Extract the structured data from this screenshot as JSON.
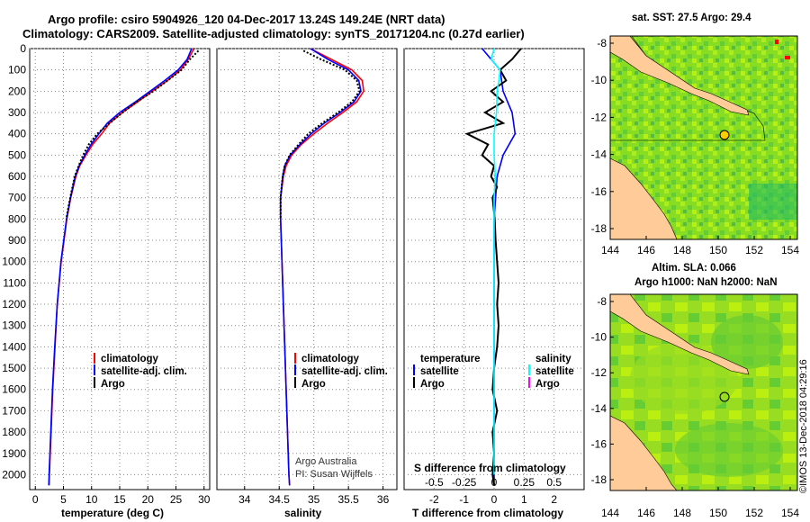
{
  "header": {
    "line1": "Argo profile: csiro 5904926_120 04-Dec-2017 13.24S 149.24E (NRT data)",
    "line2": "Climatology: CARS2009. Satellite-adjusted climatology: synTS_20171204.nc (0.27d earlier)"
  },
  "colors": {
    "climatology": "#ff0000",
    "satellite": "#0000ff",
    "argo": "#000000",
    "salinity_satellite": "#00ffff",
    "salinity_argo": "#ff00ff",
    "land": "#ffcc99",
    "ocean_green": "#66cc33"
  },
  "y_axis": {
    "ticks": [
      0,
      100,
      200,
      300,
      400,
      500,
      600,
      700,
      800,
      900,
      1000,
      1100,
      1200,
      1300,
      1400,
      1500,
      1600,
      1700,
      1800,
      1900,
      2000
    ],
    "min": 0,
    "max": 2070
  },
  "chart_data": [
    {
      "type": "line",
      "id": "temperature",
      "xlabel": "temperature (deg C)",
      "xlim": [
        -1,
        31
      ],
      "xticks": [
        0,
        5,
        10,
        15,
        20,
        25,
        30
      ],
      "legend": [
        "climatology",
        "satellite-adj. clim.",
        "Argo"
      ],
      "series": [
        {
          "name": "climatology",
          "depth": [
            0,
            50,
            100,
            150,
            200,
            250,
            300,
            350,
            400,
            450,
            500,
            550,
            600,
            700,
            800,
            900,
            1000,
            1200,
            1400,
            1600,
            1800,
            2000,
            2050
          ],
          "values": [
            28.2,
            27.2,
            25.8,
            23.5,
            20.8,
            18.2,
            15.5,
            13.2,
            11.8,
            10.2,
            9.0,
            7.9,
            7.2,
            6.3,
            5.6,
            5.1,
            4.6,
            3.9,
            3.5,
            3.1,
            2.8,
            2.5,
            2.45
          ]
        },
        {
          "name": "satellite-adj. clim.",
          "depth": [
            0,
            50,
            100,
            150,
            200,
            250,
            300,
            350,
            400,
            450,
            500,
            550,
            600,
            700,
            800,
            900,
            1000,
            1200,
            1400,
            1600,
            1800,
            2000,
            2050
          ],
          "values": [
            27.8,
            27.0,
            25.4,
            23.0,
            20.4,
            17.8,
            15.0,
            12.8,
            11.3,
            9.9,
            8.8,
            7.8,
            7.1,
            6.25,
            5.55,
            5.05,
            4.55,
            3.9,
            3.45,
            3.05,
            2.75,
            2.45,
            2.4
          ]
        },
        {
          "name": "Argo",
          "depth": [
            10,
            50,
            100,
            150,
            200,
            250,
            300,
            350,
            400,
            450,
            500,
            550,
            600,
            700,
            800
          ],
          "values": [
            29.0,
            27.5,
            26.0,
            23.5,
            21.0,
            18.0,
            15.5,
            13.2,
            11.0,
            9.5,
            8.5,
            7.7,
            7.0,
            6.2,
            5.5
          ]
        }
      ]
    },
    {
      "type": "line",
      "id": "salinity",
      "xlabel": "salinity",
      "xlim": [
        33.6,
        36.2
      ],
      "xticks": [
        34,
        34.5,
        35,
        35.5,
        36
      ],
      "legend": [
        "climatology",
        "satellite-adj. clim.",
        "Argo"
      ],
      "note_lines": [
        "Argo Australia",
        "PI: Susan Wijffels"
      ],
      "series": [
        {
          "name": "climatology",
          "depth": [
            0,
            50,
            100,
            150,
            200,
            250,
            300,
            350,
            400,
            450,
            500,
            550,
            600,
            700,
            800,
            1000,
            1200,
            1400,
            1600,
            1800,
            2000,
            2050
          ],
          "values": [
            34.95,
            35.25,
            35.55,
            35.7,
            35.72,
            35.62,
            35.42,
            35.2,
            35.0,
            34.82,
            34.68,
            34.6,
            34.56,
            34.52,
            34.52,
            34.54,
            34.56,
            34.58,
            34.6,
            34.62,
            34.64,
            34.65
          ]
        },
        {
          "name": "satellite-adj. clim.",
          "depth": [
            0,
            50,
            100,
            150,
            200,
            250,
            300,
            350,
            400,
            450,
            500,
            550,
            600,
            700,
            800,
            1000,
            1200,
            1400,
            1600,
            1800,
            2000,
            2050
          ],
          "values": [
            34.95,
            35.2,
            35.5,
            35.65,
            35.68,
            35.58,
            35.38,
            35.15,
            34.96,
            34.8,
            34.66,
            34.58,
            34.55,
            34.52,
            34.52,
            34.54,
            34.56,
            34.58,
            34.6,
            34.62,
            34.64,
            34.65
          ]
        },
        {
          "name": "Argo",
          "depth": [
            10,
            50,
            100,
            150,
            200,
            250,
            300,
            350,
            400,
            450,
            500,
            550,
            600,
            700,
            800
          ],
          "values": [
            34.85,
            35.1,
            35.45,
            35.62,
            35.66,
            35.55,
            35.35,
            35.12,
            34.92,
            34.78,
            34.65,
            34.58,
            34.55,
            34.52,
            34.52
          ]
        }
      ]
    },
    {
      "type": "line",
      "id": "difference",
      "xlabel": "T difference from climatology",
      "xlim": [
        -3,
        3
      ],
      "xticks": [
        "-2",
        "-1",
        "0",
        "1",
        "2"
      ],
      "secondary_xlabel": "S difference from climatology",
      "secondary_xticks": [
        "-0.5",
        "-0.25",
        "0",
        "0.25",
        "0.5"
      ],
      "legend_left_title": "temperature",
      "legend_right_title": "salinity",
      "legend_left": [
        "satellite",
        "Argo"
      ],
      "legend_right": [
        "satellite",
        "Argo"
      ],
      "series": [
        {
          "name": "temperature satellite",
          "depth": [
            0,
            100,
            200,
            300,
            400,
            500,
            600,
            700,
            800,
            1000,
            1500,
            2000,
            2050
          ],
          "values": [
            -0.4,
            0.2,
            0.3,
            0.6,
            0.7,
            0.3,
            0.1,
            0.05,
            0.0,
            0.0,
            0.0,
            0.0,
            0.0
          ]
        },
        {
          "name": "temperature Argo",
          "depth": [
            0,
            50,
            100,
            150,
            200,
            250,
            300,
            350,
            400,
            450,
            500,
            550,
            600,
            650,
            700,
            800,
            900,
            1000,
            1100,
            1200,
            1300,
            1400,
            1500,
            1600,
            1700,
            1800,
            1900,
            2000,
            2050
          ],
          "values": [
            0.9,
            0.6,
            0.2,
            0.4,
            -0.1,
            0.3,
            -0.3,
            0.3,
            -0.9,
            -0.2,
            -0.4,
            0.0,
            -0.1,
            0.1,
            -0.05,
            0.02,
            0.05,
            0.1,
            0.15,
            0.1,
            0.15,
            0.1,
            0.0,
            -0.05,
            0.1,
            -0.05,
            0.0,
            -0.05,
            0.0
          ]
        },
        {
          "name": "salinity satellite",
          "depth": [
            0,
            50,
            100,
            150,
            200,
            300,
            400,
            500,
            600,
            700,
            800,
            1000,
            1500,
            2000
          ],
          "values": [
            0.0,
            -0.05,
            0.1,
            0.08,
            0.05,
            0.04,
            0.0,
            0.0,
            0.02,
            0.0,
            0.0,
            0.0,
            0.0,
            0.0
          ]
        }
      ]
    }
  ],
  "maps": [
    {
      "title": "sat. SST: 27.5 Argo: 29.4",
      "xticks": [
        "144",
        "146",
        "148",
        "150",
        "152",
        "154"
      ],
      "yticks": [
        "-8",
        "-10",
        "-12",
        "-14",
        "-16",
        "-18"
      ]
    },
    {
      "title_lines": [
        "Altim. SLA: 0.066",
        "Argo h1000: NaN h2000: NaN"
      ],
      "xticks": [
        "144",
        "146",
        "148",
        "150",
        "152",
        "154"
      ],
      "yticks": [
        "-8",
        "-10",
        "-12",
        "-14",
        "-16",
        "-18"
      ]
    }
  ],
  "footer_stamp": "©IMOS 13-Dec-2018 04:29:16"
}
